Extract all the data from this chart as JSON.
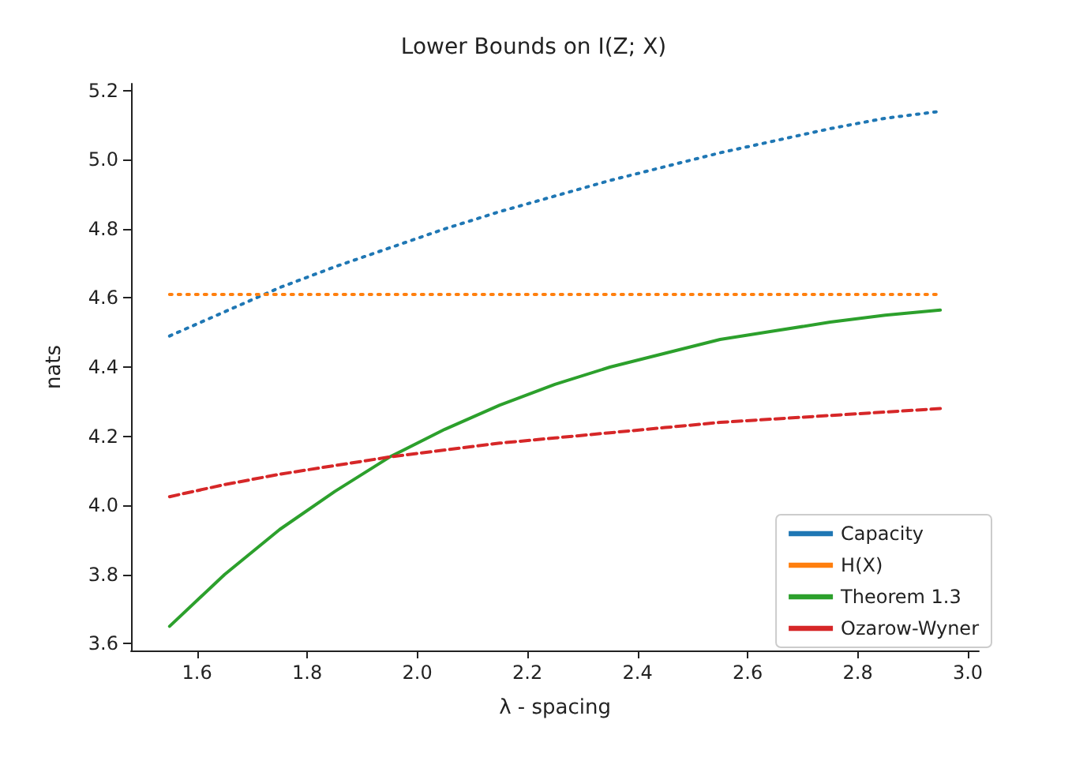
{
  "chart_data": {
    "type": "line",
    "title": "Lower Bounds on I(Z; X)",
    "xlabel": "λ - spacing",
    "ylabel": "nats",
    "x": [
      1.55,
      1.65,
      1.75,
      1.85,
      1.95,
      2.05,
      2.15,
      2.25,
      2.35,
      2.45,
      2.55,
      2.65,
      2.75,
      2.85,
      2.95
    ],
    "series": [
      {
        "name": "Capacity",
        "color": "#1f77b4",
        "line_style": "dotted",
        "values": [
          4.49,
          4.56,
          4.63,
          4.69,
          4.745,
          4.8,
          4.85,
          4.895,
          4.94,
          4.98,
          5.02,
          5.055,
          5.09,
          5.12,
          5.14
        ]
      },
      {
        "name": "H(X)",
        "color": "#ff7f0e",
        "line_style": "dotted",
        "values": [
          4.61,
          4.61,
          4.61,
          4.61,
          4.61,
          4.61,
          4.61,
          4.61,
          4.61,
          4.61,
          4.61,
          4.61,
          4.61,
          4.61,
          4.61
        ]
      },
      {
        "name": "Theorem 1.3",
        "color": "#2ca02c",
        "line_style": "solid",
        "values": [
          3.65,
          3.8,
          3.93,
          4.04,
          4.14,
          4.22,
          4.29,
          4.35,
          4.4,
          4.44,
          4.48,
          4.505,
          4.53,
          4.55,
          4.565
        ]
      },
      {
        "name": "Ozarow-Wyner",
        "color": "#d62728",
        "line_style": "dashed",
        "values": [
          4.025,
          4.06,
          4.09,
          4.115,
          4.14,
          4.16,
          4.18,
          4.195,
          4.21,
          4.225,
          4.24,
          4.25,
          4.26,
          4.27,
          4.28
        ]
      }
    ],
    "xlim": [
      1.48,
      3.02
    ],
    "ylim": [
      3.58,
      5.22
    ],
    "xticks": [
      1.6,
      1.8,
      {
        "value": 2,
        "label": "2.0"
      },
      2.2,
      2.4,
      2.6,
      2.8,
      {
        "value": 3,
        "label": "3.0"
      }
    ],
    "yticks": [
      3.6,
      3.8,
      {
        "value": 4,
        "label": "4.0"
      },
      4.2,
      4.4,
      4.6,
      4.8,
      {
        "value": 5,
        "label": "5.0"
      },
      5.2
    ],
    "grid": false,
    "legend": "bottom right",
    "marker": "none"
  }
}
